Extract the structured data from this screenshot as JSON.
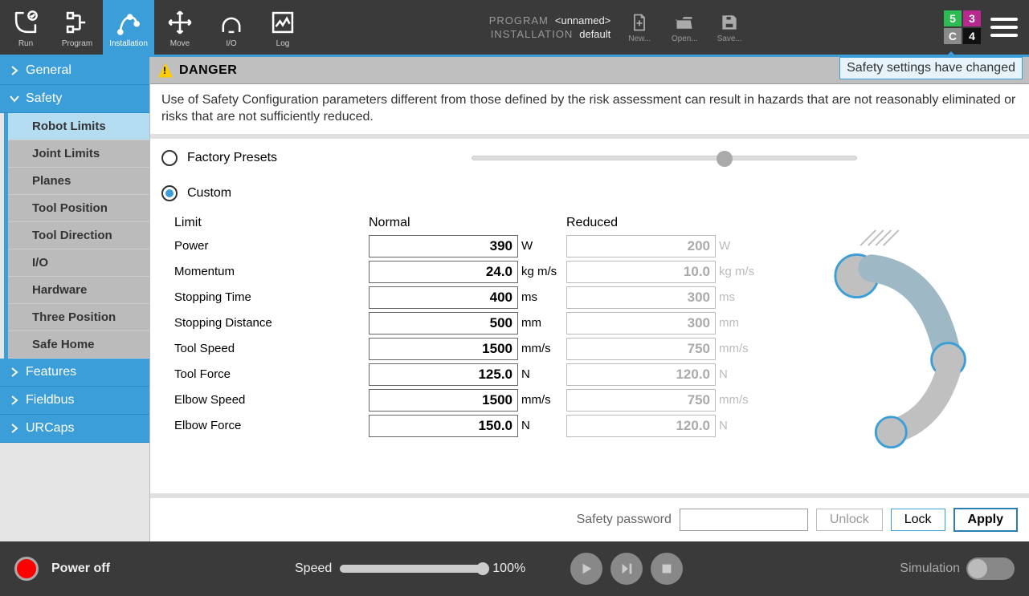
{
  "topnav": {
    "run": "Run",
    "program": "Program",
    "installation": "Installation",
    "move": "Move",
    "io": "I/O",
    "log": "Log"
  },
  "proginfo": {
    "program_k": "PROGRAM",
    "program_v": "<unnamed>",
    "installation_k": "INSTALLATION",
    "installation_v": "default"
  },
  "filebtns": {
    "new": "New...",
    "open": "Open...",
    "save": "Save..."
  },
  "grid": {
    "a": "5",
    "b": "3",
    "c": "C",
    "d": "4",
    "a_bg": "#2dbb54",
    "b_bg": "#b8298f",
    "c_bg": "#8a8a8a",
    "d_bg": "#111111"
  },
  "sidebar": {
    "general": "General",
    "safety": "Safety",
    "subs": {
      "robot_limits": "Robot Limits",
      "joint_limits": "Joint Limits",
      "planes": "Planes",
      "tool_position": "Tool Position",
      "tool_direction": "Tool Direction",
      "io": "I/O",
      "hardware": "Hardware",
      "three_position": "Three Position",
      "safe_home": "Safe Home"
    },
    "features": "Features",
    "fieldbus": "Fieldbus",
    "urcaps": "URCaps"
  },
  "danger": {
    "title": "DANGER",
    "text": "Use of Safety Configuration parameters different from those defined by the risk assessment can result in hazards that are not reasonably eliminated or risks that are not sufficiently reduced."
  },
  "notice": "Safety settings have changed",
  "presets": {
    "factory": "Factory Presets",
    "custom": "Custom",
    "slider_pct": 66
  },
  "table": {
    "hdr": {
      "limit": "Limit",
      "normal": "Normal",
      "reduced": "Reduced"
    },
    "rows": [
      {
        "label": "Power",
        "n": "390",
        "nu": "W",
        "r": "200",
        "ru": "W"
      },
      {
        "label": "Momentum",
        "n": "24.0",
        "nu": "kg m/s",
        "r": "10.0",
        "ru": "kg m/s"
      },
      {
        "label": "Stopping Time",
        "n": "400",
        "nu": "ms",
        "r": "300",
        "ru": "ms"
      },
      {
        "label": "Stopping Distance",
        "n": "500",
        "nu": "mm",
        "r": "300",
        "ru": "mm"
      },
      {
        "label": "Tool Speed",
        "n": "1500",
        "nu": "mm/s",
        "r": "750",
        "ru": "mm/s"
      },
      {
        "label": "Tool Force",
        "n": "125.0",
        "nu": "N",
        "r": "120.0",
        "ru": "N"
      },
      {
        "label": "Elbow Speed",
        "n": "1500",
        "nu": "mm/s",
        "r": "750",
        "ru": "mm/s"
      },
      {
        "label": "Elbow Force",
        "n": "150.0",
        "nu": "N",
        "r": "120.0",
        "ru": "N"
      }
    ]
  },
  "footer": {
    "pwd_label": "Safety password",
    "unlock": "Unlock",
    "lock": "Lock",
    "apply": "Apply"
  },
  "bottom": {
    "power": "Power off",
    "speed_label": "Speed",
    "speed_val": "100%",
    "simulation": "Simulation"
  },
  "colors": {
    "accent": "#3b9ed8",
    "topbar": "#3a3a3a",
    "danger_bar": "#bfbfbf"
  }
}
